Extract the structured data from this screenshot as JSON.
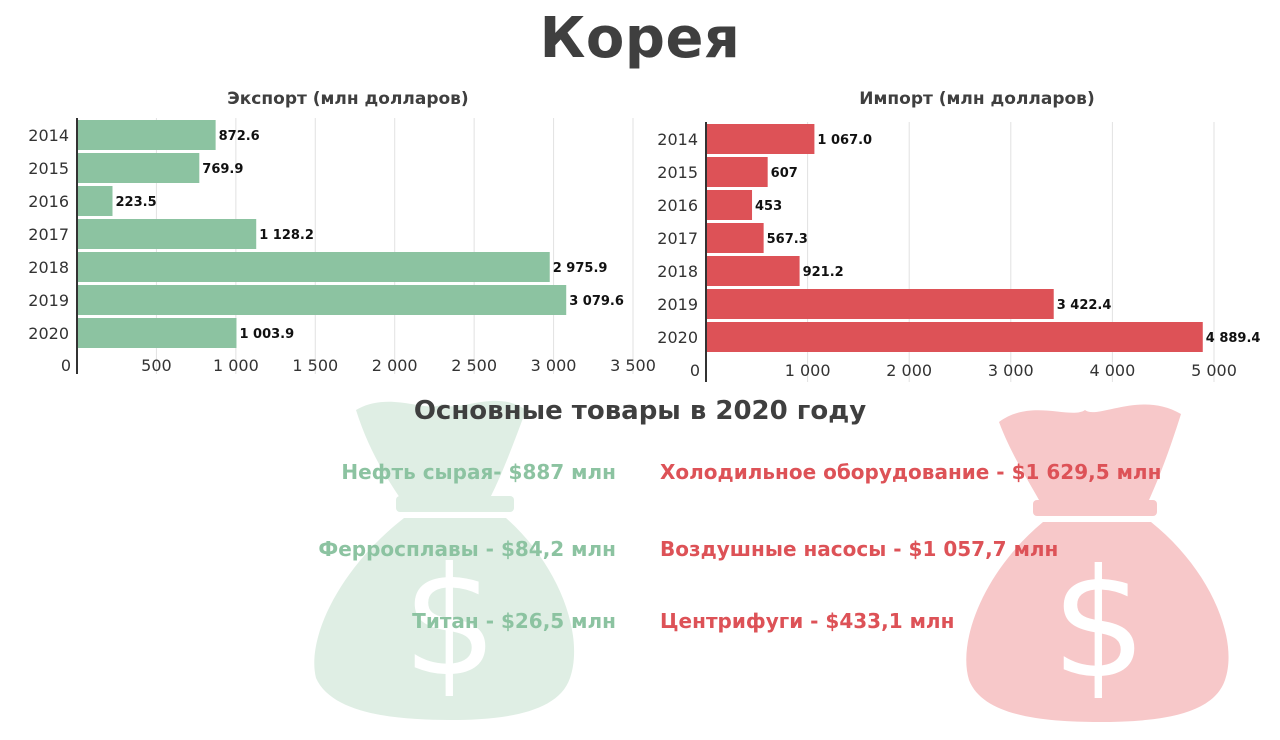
{
  "title": "Корея",
  "colors": {
    "export": "#8cc3a1",
    "import": "#dd5257",
    "export_bag": "#dfeee4",
    "import_bag": "#f7c8c9",
    "title_text": "#3f3f3f"
  },
  "icons": {
    "left_background": "money-bag-icon",
    "right_background": "money-bag-icon"
  },
  "chart_data": [
    {
      "type": "bar",
      "orientation": "horizontal",
      "title": "Экспорт (млн долларов)",
      "categories": [
        "2014",
        "2015",
        "2016",
        "2017",
        "2018",
        "2019",
        "2020"
      ],
      "values": [
        872.6,
        769.9,
        223.5,
        1128.2,
        2975.9,
        3079.6,
        1003.9
      ],
      "value_labels": [
        "872.6",
        "769.9",
        "223.5",
        "1 128.2",
        "2 975.9",
        "3 079.6",
        "1 003.9"
      ],
      "xlim": [
        0,
        3500
      ],
      "x_ticks": [
        0,
        500,
        1000,
        1500,
        2000,
        2500,
        3000,
        3500
      ],
      "x_tick_labels": [
        "0",
        "500",
        "1 000",
        "1 500",
        "2 000",
        "2 500",
        "3 000",
        "3 500"
      ],
      "grid": true,
      "color": "#8cc3a1"
    },
    {
      "type": "bar",
      "orientation": "horizontal",
      "title": "Импорт (млн долларов)",
      "categories": [
        "2014",
        "2015",
        "2016",
        "2017",
        "2018",
        "2019",
        "2020"
      ],
      "values": [
        1067.0,
        607,
        453,
        567.3,
        921.2,
        3422.4,
        4889.4
      ],
      "value_labels": [
        "1 067.0",
        "607",
        "453",
        "567.3",
        "921.2",
        "3 422.4",
        "4 889.4"
      ],
      "xlim": [
        0,
        5000
      ],
      "x_ticks": [
        0,
        1000,
        2000,
        3000,
        4000,
        5000
      ],
      "x_tick_labels": [
        "0",
        "1 000",
        "2 000",
        "3 000",
        "4 000",
        "5 000"
      ],
      "grid": true,
      "color": "#dd5257"
    }
  ],
  "goods_section": {
    "heading": "Основные товары в 2020 году",
    "export_items": [
      "Нефть сырая- $887 млн",
      "Ферросплавы - $84,2 млн",
      "Титан - $26,5 млн"
    ],
    "import_items": [
      "Холодильное оборудование - $1 629,5 млн",
      "Воздушные насосы  - $1 057,7 млн",
      "Центрифуги  - $433,1 млн"
    ]
  }
}
